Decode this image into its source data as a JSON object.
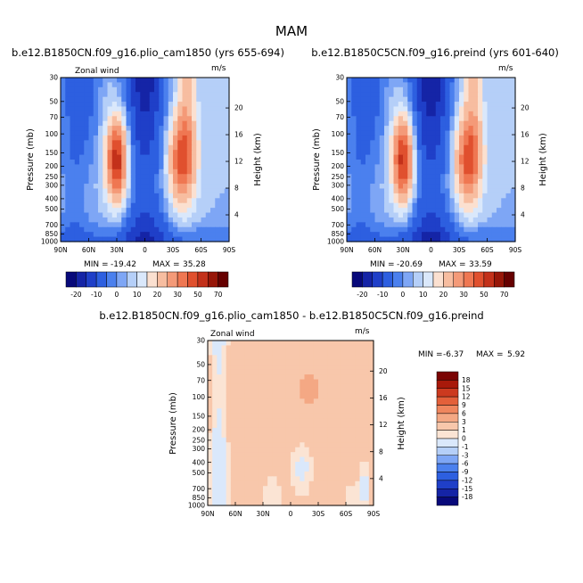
{
  "figure": {
    "title": "MAM",
    "colors": {
      "panel_scale": [
        "#08097a",
        "#1524a6",
        "#1f3fc8",
        "#2d5fe0",
        "#4b80ee",
        "#7ea6f5",
        "#b5cff8",
        "#dae8fb",
        "#fbe0d0",
        "#f7bda0",
        "#f49a78",
        "#ef7752",
        "#e0502e",
        "#c3311a",
        "#971608",
        "#660000"
      ],
      "diff_scale": [
        "#08097a",
        "#1524a6",
        "#1f3fc8",
        "#2d5fe0",
        "#4b80ee",
        "#7ea6f5",
        "#b5cff8",
        "#dae8fb",
        "#fbe4d4",
        "#f8c7ab",
        "#f4a884",
        "#ef865e",
        "#e3603a",
        "#cc3a1f",
        "#a8190a",
        "#7a0403"
      ]
    }
  },
  "chart_data": [
    {
      "type": "heatmap",
      "title": "b.e12.B1850CN.f09_g16.plio_cam1850 (yrs 655-694)",
      "left_label": "Zonal wind",
      "units": "m/s",
      "xlabel": "",
      "ylabel": "Pressure (mb)",
      "y2label": "Height (km)",
      "x_ticks": [
        "90N",
        "60N",
        "30N",
        "0",
        "30S",
        "60S",
        "90S"
      ],
      "x_range": [
        -90,
        90
      ],
      "y_ticks": [
        "30",
        "50",
        "70",
        "100",
        "150",
        "200",
        "250",
        "300",
        "400",
        "500",
        "700",
        "850",
        "1000"
      ],
      "y2_ticks": [
        "4",
        "8",
        "12",
        "16",
        "20"
      ],
      "y_range": [
        1000,
        30
      ],
      "min_label": "MIN =",
      "min": "-19.42",
      "max_label": "MAX =",
      "max": "35.28",
      "colorbar_labels": [
        "-20",
        "-10",
        "0",
        "10",
        "20",
        "30",
        "50",
        "70"
      ],
      "field": {
        "jets": [
          {
            "lat": -30,
            "p": 175,
            "amp": 34,
            "sx": 11,
            "sy": 0.55
          },
          {
            "lat": 40,
            "p": 175,
            "amp": 28,
            "sx": 14,
            "sy": 0.6
          }
        ],
        "easterly_core": {
          "lat": 0,
          "p": 30,
          "amp": -19
        }
      }
    },
    {
      "type": "heatmap",
      "title": "b.e12.B1850C5CN.f09_g16.preind (yrs 601-640)",
      "left_label": "",
      "units": "m/s",
      "xlabel": "",
      "ylabel": "Pressure (mb)",
      "y2label": "Height (km)",
      "x_ticks": [
        "90N",
        "60N",
        "30N",
        "0",
        "30S",
        "60S",
        "90S"
      ],
      "x_range": [
        -90,
        90
      ],
      "y_ticks": [
        "30",
        "50",
        "70",
        "100",
        "150",
        "200",
        "250",
        "300",
        "400",
        "500",
        "700",
        "850",
        "1000"
      ],
      "y2_ticks": [
        "4",
        "8",
        "12",
        "16",
        "20"
      ],
      "y_range": [
        1000,
        30
      ],
      "min_label": "MIN =",
      "min": "-20.69",
      "max_label": "MAX =",
      "max": "33.59",
      "colorbar_labels": [
        "-20",
        "-10",
        "0",
        "10",
        "20",
        "30",
        "50",
        "70"
      ],
      "field": {
        "jets": [
          {
            "lat": -30,
            "p": 175,
            "amp": 33,
            "sx": 11,
            "sy": 0.55
          },
          {
            "lat": 40,
            "p": 175,
            "amp": 27,
            "sx": 14,
            "sy": 0.6
          }
        ],
        "easterly_core": {
          "lat": 0,
          "p": 30,
          "amp": -20
        }
      }
    },
    {
      "type": "heatmap",
      "title": "b.e12.B1850CN.f09_g16.plio_cam1850 - b.e12.B1850C5CN.f09_g16.preind",
      "left_label": "Zonal wind",
      "units": "m/s",
      "xlabel": "",
      "ylabel": "Pressure (mb)",
      "y2label": "Height (km)",
      "x_ticks": [
        "90N",
        "60N",
        "30N",
        "0",
        "30S",
        "60S",
        "90S"
      ],
      "x_range": [
        -90,
        90
      ],
      "y_ticks": [
        "30",
        "50",
        "70",
        "100",
        "150",
        "200",
        "250",
        "300",
        "400",
        "500",
        "700",
        "850",
        "1000"
      ],
      "y2_ticks": [
        "4",
        "8",
        "12",
        "16",
        "20"
      ],
      "y_range": [
        1000,
        30
      ],
      "min_label": "MIN =",
      "min": "-6.37",
      "max_label": "MAX =",
      "max": "5.92",
      "colorbar_labels": [
        "18",
        "15",
        "12",
        "9",
        "6",
        "3",
        "1",
        "0",
        "-1",
        "-3",
        "-6",
        "-9",
        "-12",
        "-15",
        "-18"
      ]
    }
  ]
}
